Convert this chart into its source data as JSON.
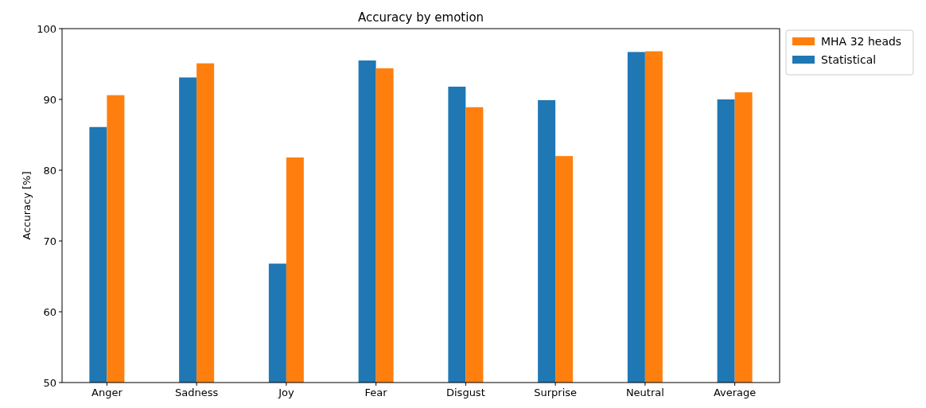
{
  "chart_data": {
    "type": "bar",
    "title": "Accuracy by emotion",
    "ylabel": "Accuracy [%]",
    "categories": [
      "Anger",
      "Sadness",
      "Joy",
      "Fear",
      "Disgust",
      "Surprise",
      "Neutral",
      "Average"
    ],
    "series": [
      {
        "name": "Statistical",
        "color": "#1f77b4",
        "values": [
          86.1,
          93.1,
          66.8,
          95.5,
          91.8,
          89.9,
          96.7,
          90.0
        ]
      },
      {
        "name": "MHA 32 heads",
        "color": "#ff7f0e",
        "values": [
          90.6,
          95.1,
          81.8,
          94.4,
          88.9,
          82.0,
          96.8,
          91.0
        ]
      }
    ],
    "ylim": [
      50,
      100
    ],
    "yticks": [
      50,
      60,
      70,
      80,
      90,
      100
    ],
    "legend": "top right"
  }
}
